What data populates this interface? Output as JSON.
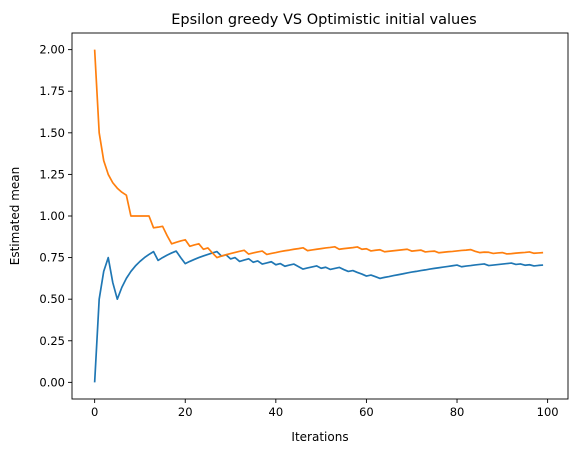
{
  "chart_data": {
    "type": "line",
    "title": "Epsilon greedy VS Optimistic initial values",
    "xlabel": "Iterations",
    "ylabel": "Estimated mean",
    "xlim": [
      -5,
      104.5
    ],
    "ylim": [
      -0.1,
      2.1
    ],
    "xticks": [
      0,
      20,
      40,
      60,
      80,
      100
    ],
    "yticks": [
      0.0,
      0.25,
      0.5,
      0.75,
      1.0,
      1.25,
      1.5,
      1.75,
      2.0
    ],
    "ytick_labels": [
      "0.00",
      "0.25",
      "0.50",
      "0.75",
      "1.00",
      "1.25",
      "1.50",
      "1.75",
      "2.00"
    ],
    "grid": false,
    "legend": "none",
    "series": [
      {
        "color": "#1f77b4",
        "x": [
          0,
          1,
          2,
          3,
          4,
          5,
          6,
          7,
          8,
          9,
          10,
          11,
          12,
          13,
          14,
          15,
          16,
          17,
          18,
          19,
          20,
          21,
          22,
          23,
          24,
          25,
          26,
          27,
          28,
          29,
          30,
          31,
          32,
          33,
          34,
          35,
          36,
          37,
          38,
          39,
          40,
          41,
          42,
          43,
          44,
          45,
          46,
          47,
          48,
          49,
          50,
          51,
          52,
          53,
          54,
          55,
          56,
          57,
          58,
          59,
          60,
          61,
          62,
          63,
          64,
          65,
          66,
          67,
          68,
          69,
          70,
          71,
          72,
          73,
          74,
          75,
          76,
          77,
          78,
          79,
          80,
          81,
          82,
          83,
          84,
          85,
          86,
          87,
          88,
          89,
          90,
          91,
          92,
          93,
          94,
          95,
          96,
          97,
          98,
          99
        ],
        "y": [
          0.0,
          0.5,
          0.667,
          0.75,
          0.6,
          0.5,
          0.571,
          0.625,
          0.667,
          0.7,
          0.727,
          0.75,
          0.769,
          0.786,
          0.733,
          0.75,
          0.765,
          0.778,
          0.789,
          0.75,
          0.714,
          0.727,
          0.739,
          0.75,
          0.76,
          0.769,
          0.778,
          0.786,
          0.759,
          0.767,
          0.742,
          0.75,
          0.727,
          0.735,
          0.743,
          0.722,
          0.73,
          0.711,
          0.718,
          0.725,
          0.707,
          0.714,
          0.698,
          0.705,
          0.711,
          0.696,
          0.681,
          0.688,
          0.694,
          0.7,
          0.686,
          0.692,
          0.679,
          0.685,
          0.691,
          0.678,
          0.667,
          0.672,
          0.661,
          0.651,
          0.639,
          0.645,
          0.635,
          0.625,
          0.631,
          0.636,
          0.642,
          0.647,
          0.652,
          0.658,
          0.663,
          0.667,
          0.672,
          0.676,
          0.681,
          0.685,
          0.689,
          0.693,
          0.697,
          0.701,
          0.705,
          0.695,
          0.699,
          0.702,
          0.706,
          0.709,
          0.712,
          0.702,
          0.705,
          0.708,
          0.711,
          0.714,
          0.717,
          0.709,
          0.712,
          0.704,
          0.707,
          0.7,
          0.703,
          0.705
        ]
      },
      {
        "color": "#ff7f0e",
        "x": [
          0,
          1,
          2,
          3,
          4,
          5,
          6,
          7,
          8,
          9,
          10,
          11,
          12,
          13,
          14,
          15,
          16,
          17,
          18,
          19,
          20,
          21,
          22,
          23,
          24,
          25,
          26,
          27,
          28,
          29,
          30,
          31,
          32,
          33,
          34,
          35,
          36,
          37,
          38,
          39,
          40,
          41,
          42,
          43,
          44,
          45,
          46,
          47,
          48,
          49,
          50,
          51,
          52,
          53,
          54,
          55,
          56,
          57,
          58,
          59,
          60,
          61,
          62,
          63,
          64,
          65,
          66,
          67,
          68,
          69,
          70,
          71,
          72,
          73,
          74,
          75,
          76,
          77,
          78,
          79,
          80,
          81,
          82,
          83,
          84,
          85,
          86,
          87,
          88,
          89,
          90,
          91,
          92,
          93,
          94,
          95,
          96,
          97,
          98,
          99
        ],
        "y": [
          2.0,
          1.5,
          1.333,
          1.25,
          1.2,
          1.167,
          1.143,
          1.125,
          1.0,
          1.0,
          1.0,
          1.0,
          1.0,
          0.929,
          0.933,
          0.938,
          0.882,
          0.833,
          0.842,
          0.85,
          0.857,
          0.818,
          0.826,
          0.833,
          0.8,
          0.808,
          0.778,
          0.75,
          0.759,
          0.767,
          0.774,
          0.781,
          0.788,
          0.794,
          0.771,
          0.778,
          0.784,
          0.789,
          0.769,
          0.775,
          0.78,
          0.786,
          0.791,
          0.795,
          0.8,
          0.804,
          0.809,
          0.792,
          0.796,
          0.8,
          0.804,
          0.808,
          0.811,
          0.815,
          0.8,
          0.804,
          0.807,
          0.81,
          0.814,
          0.8,
          0.803,
          0.79,
          0.794,
          0.797,
          0.785,
          0.788,
          0.791,
          0.794,
          0.797,
          0.8,
          0.789,
          0.792,
          0.795,
          0.784,
          0.787,
          0.789,
          0.779,
          0.782,
          0.785,
          0.787,
          0.79,
          0.793,
          0.795,
          0.798,
          0.788,
          0.78,
          0.783,
          0.782,
          0.775,
          0.778,
          0.78,
          0.772,
          0.774,
          0.777,
          0.779,
          0.781,
          0.784,
          0.776,
          0.778,
          0.78
        ]
      }
    ]
  }
}
